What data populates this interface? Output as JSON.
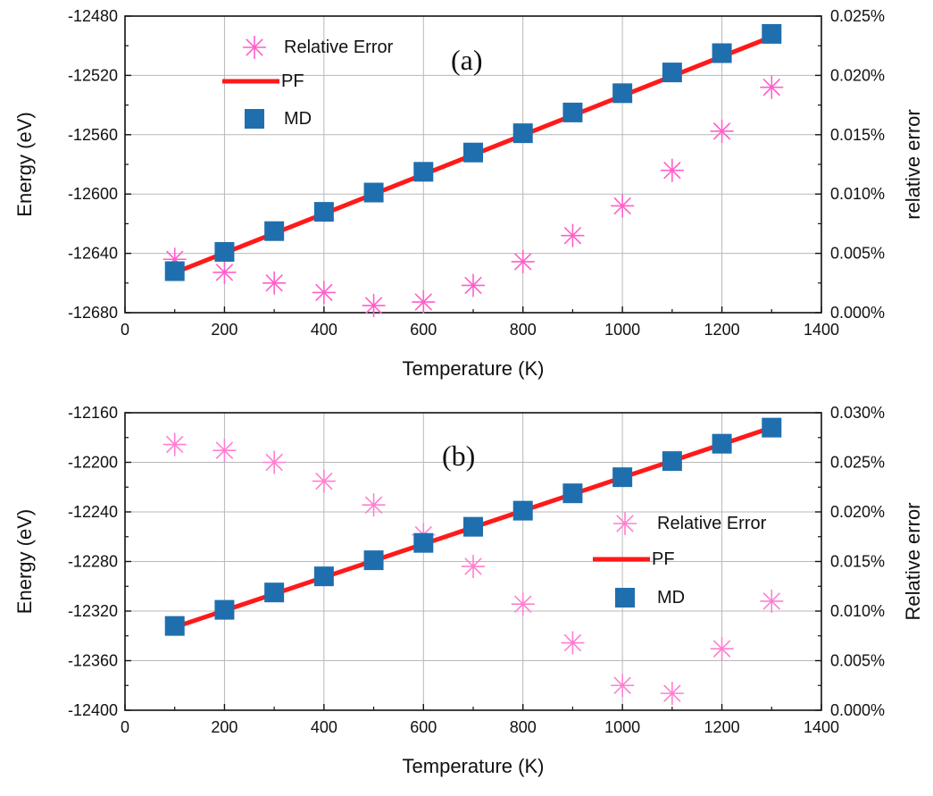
{
  "chart_data": [
    {
      "type": "line",
      "panel_label": "(a)",
      "xlabel": "Temperature (K)",
      "ylabel": "Energy (eV)",
      "y2label": "relative error",
      "xlim": [
        0,
        1400
      ],
      "ylim": [
        -12680,
        -12480
      ],
      "y2lim": [
        0,
        0.025
      ],
      "x_ticks": [
        0,
        200,
        400,
        600,
        800,
        1000,
        1200,
        1400
      ],
      "y_ticks": [
        -12680,
        -12640,
        -12600,
        -12560,
        -12520,
        -12480
      ],
      "y2_ticks": [
        0,
        0.005,
        0.01,
        0.015,
        0.02,
        0.025
      ],
      "x_tick_labels": [
        "0",
        "200",
        "400",
        "600",
        "800",
        "1000",
        "1200",
        "1400"
      ],
      "y_tick_labels": [
        "-12680",
        "-12640",
        "-12600",
        "-12560",
        "-12520",
        "-12480"
      ],
      "y2_tick_labels": [
        "0.000%",
        "0.005%",
        "0.010%",
        "0.015%",
        "0.020%",
        "0.025%"
      ],
      "grid": true,
      "legend_position": "top-left",
      "series": [
        {
          "name": "Relative Error",
          "kind": "star",
          "axis": "right",
          "color": "#ff5fc8",
          "x": [
            100,
            200,
            300,
            400,
            500,
            600,
            700,
            800,
            900,
            1000,
            1100,
            1200,
            1300
          ],
          "y": [
            0.0045,
            0.0034,
            0.0025,
            0.0017,
            0.0006,
            0.0009,
            0.0023,
            0.0043,
            0.0065,
            0.009,
            0.012,
            0.0153,
            0.019
          ]
        },
        {
          "name": "PF",
          "kind": "line",
          "axis": "left",
          "color": "#ff1a1a",
          "x": [
            100,
            1300
          ],
          "y": [
            -12653,
            -12494
          ]
        },
        {
          "name": "MD",
          "kind": "square",
          "axis": "left",
          "color": "#1f6fae",
          "x": [
            100,
            200,
            300,
            400,
            500,
            600,
            700,
            800,
            900,
            1000,
            1100,
            1200,
            1300
          ],
          "y": [
            -12652,
            -12639,
            -12625,
            -12612,
            -12599,
            -12585,
            -12572,
            -12559,
            -12545,
            -12532,
            -12518,
            -12505,
            -12492
          ]
        }
      ]
    },
    {
      "type": "line",
      "panel_label": "(b)",
      "xlabel": "Temperature (K)",
      "ylabel": "Energy (eV)",
      "y2label": "Relative error",
      "xlim": [
        0,
        1400
      ],
      "ylim": [
        -12400,
        -12160
      ],
      "y2lim": [
        0,
        0.03
      ],
      "x_ticks": [
        0,
        200,
        400,
        600,
        800,
        1000,
        1200,
        1400
      ],
      "y_ticks": [
        -12400,
        -12360,
        -12320,
        -12280,
        -12240,
        -12200,
        -12160
      ],
      "y2_ticks": [
        0,
        0.005,
        0.01,
        0.015,
        0.02,
        0.025,
        0.03
      ],
      "x_tick_labels": [
        "0",
        "200",
        "400",
        "600",
        "800",
        "1000",
        "1200",
        "1400"
      ],
      "y_tick_labels": [
        "-12400",
        "-12360",
        "-12320",
        "-12280",
        "-12240",
        "-12200",
        "-12160"
      ],
      "y2_tick_labels": [
        "0.000%",
        "0.005%",
        "0.010%",
        "0.015%",
        "0.020%",
        "0.025%",
        "0.030%"
      ],
      "grid": true,
      "legend_position": "center-right",
      "series": [
        {
          "name": "Relative Error",
          "kind": "star",
          "axis": "right",
          "color": "#ff7fd0",
          "x": [
            100,
            200,
            300,
            400,
            500,
            600,
            700,
            800,
            900,
            1000,
            1100,
            1200,
            1300
          ],
          "y": [
            0.0268,
            0.0262,
            0.025,
            0.0231,
            0.0207,
            0.0177,
            0.0145,
            0.0107,
            0.0068,
            0.0025,
            0.0017,
            0.0062,
            0.011
          ]
        },
        {
          "name": "PF",
          "kind": "line",
          "axis": "left",
          "color": "#ff1a1a",
          "x": [
            100,
            1300
          ],
          "y": [
            -12333,
            -12172
          ]
        },
        {
          "name": "MD",
          "kind": "square",
          "axis": "left",
          "color": "#1f6fae",
          "x": [
            100,
            200,
            300,
            400,
            500,
            600,
            700,
            800,
            900,
            1000,
            1100,
            1200,
            1300
          ],
          "y": [
            -12332,
            -12319,
            -12305,
            -12292,
            -12279,
            -12265,
            -12252,
            -12239,
            -12225,
            -12212,
            -12199,
            -12185,
            -12172
          ]
        }
      ]
    }
  ]
}
